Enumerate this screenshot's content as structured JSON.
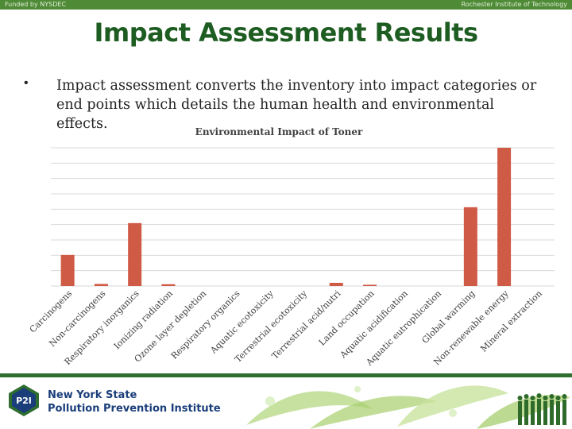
{
  "header": {
    "left_text": "Funded by NYSDEC",
    "right_text": "Rochester Institute of Technology"
  },
  "slide": {
    "title": "Impact Assessment Results",
    "bullet_marker": "•",
    "bullet_text": "Impact assessment converts the inventory into impact categories or end points which details the human health and environmental effects."
  },
  "chart_data": {
    "type": "bar",
    "title": "Environmental Impact of Toner",
    "categories": [
      "Carcinogens",
      "Non-carcinogens",
      "Respiratory inorganics",
      "Ionizing radiation",
      "Ozone layer depletion",
      "Respiratory organics",
      "Aquatic ecotoxicity",
      "Terrestrial ecotoxicity",
      "Terrestrial acid/nutri",
      "Land occupation",
      "Aquatic acidification",
      "Aquatic eutrophication",
      "Global warming",
      "Non-renewable energy",
      "Mineral extraction"
    ],
    "values": [
      22.5,
      1.5,
      45.5,
      1.3,
      0,
      0,
      0,
      0,
      2.3,
      0.9,
      0,
      0,
      57,
      100,
      0
    ],
    "ylim": [
      0,
      100
    ],
    "grid": true,
    "colors": {
      "bar": "#cf5a45",
      "grid": "#d9d9d9",
      "title": "#404040",
      "label": "#404040"
    }
  },
  "footer": {
    "logo_text": "P2I",
    "org_line1": "New York State",
    "org_line2": "Pollution Prevention Institute"
  }
}
